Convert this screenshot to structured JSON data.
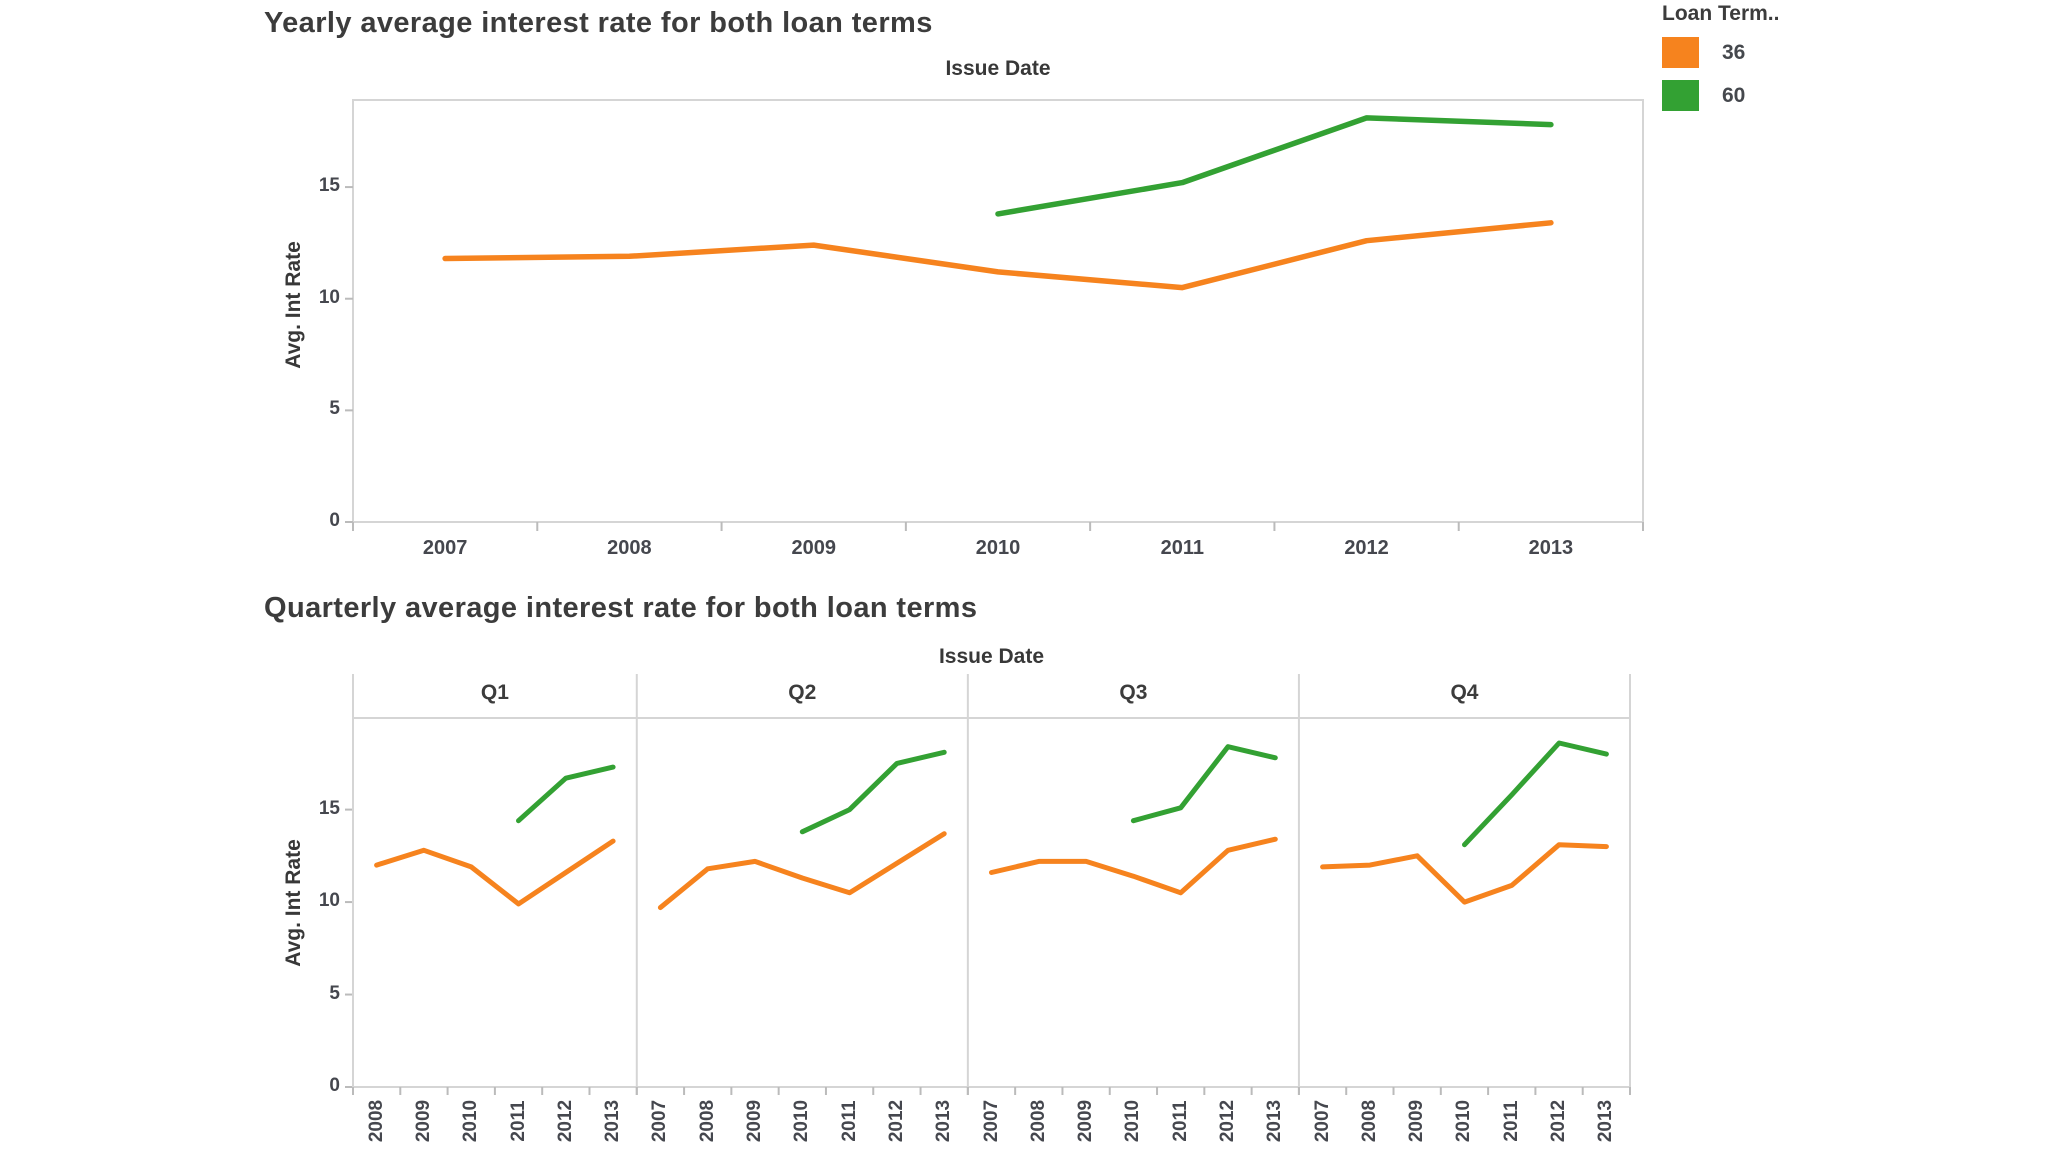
{
  "page": {
    "background": "#ffffff"
  },
  "legend": {
    "title": "Loan Term..",
    "items": [
      {
        "label": "36",
        "color": "#f6831e"
      },
      {
        "label": "60",
        "color": "#33a133"
      }
    ]
  },
  "colors": {
    "series_36": "#f6831e",
    "series_60": "#33a133",
    "plot_border": "#d5d5d5",
    "tick_mark": "#bbbbbb",
    "title_text": "#3c3c3c",
    "axis_text": "#45474e"
  },
  "chart_data": [
    {
      "type": "line",
      "title": "Yearly average interest rate for both loan terms",
      "xlabel": "Issue Date",
      "ylabel": "Avg. Int Rate",
      "x": [
        2007,
        2008,
        2009,
        2010,
        2011,
        2012,
        2013
      ],
      "yticks": [
        0,
        5,
        10,
        15
      ],
      "ylim": [
        0,
        18.9
      ],
      "grid": false,
      "legend_position": "top-right",
      "series": [
        {
          "name": "36",
          "color": "#f6831e",
          "values": [
            11.8,
            11.9,
            12.4,
            11.2,
            10.5,
            12.6,
            13.4
          ]
        },
        {
          "name": "60",
          "color": "#33a133",
          "values": [
            null,
            null,
            null,
            13.8,
            15.2,
            18.1,
            17.8
          ]
        }
      ]
    },
    {
      "type": "line-small-multiples",
      "title": "Quarterly average interest rate for both loan terms",
      "xlabel": "Issue Date",
      "ylabel": "Avg. Int Rate",
      "yticks": [
        0,
        5,
        10,
        15
      ],
      "ylim": [
        0,
        19.9
      ],
      "grid": false,
      "panels": [
        {
          "label": "Q1",
          "x": [
            2008,
            2009,
            2010,
            2011,
            2012,
            2013
          ],
          "series": [
            {
              "name": "36",
              "color": "#f6831e",
              "values": [
                12.0,
                12.8,
                11.9,
                9.9,
                11.6,
                13.3
              ]
            },
            {
              "name": "60",
              "color": "#33a133",
              "values": [
                null,
                null,
                null,
                14.4,
                16.7,
                17.3
              ]
            }
          ]
        },
        {
          "label": "Q2",
          "x": [
            2007,
            2008,
            2009,
            2010,
            2011,
            2012,
            2013
          ],
          "series": [
            {
              "name": "36",
              "color": "#f6831e",
              "values": [
                9.7,
                11.8,
                12.2,
                11.3,
                10.5,
                12.1,
                13.7
              ]
            },
            {
              "name": "60",
              "color": "#33a133",
              "values": [
                null,
                null,
                null,
                13.8,
                15.0,
                17.5,
                18.1
              ]
            }
          ]
        },
        {
          "label": "Q3",
          "x": [
            2007,
            2008,
            2009,
            2010,
            2011,
            2012,
            2013
          ],
          "series": [
            {
              "name": "36",
              "color": "#f6831e",
              "values": [
                11.6,
                12.2,
                12.2,
                11.4,
                10.5,
                12.8,
                13.4
              ]
            },
            {
              "name": "60",
              "color": "#33a133",
              "values": [
                null,
                null,
                null,
                14.4,
                15.1,
                18.4,
                17.8
              ]
            }
          ]
        },
        {
          "label": "Q4",
          "x": [
            2007,
            2008,
            2009,
            2010,
            2011,
            2012,
            2013
          ],
          "series": [
            {
              "name": "36",
              "color": "#f6831e",
              "values": [
                11.9,
                12.0,
                12.5,
                10.0,
                10.9,
                13.1,
                13.0
              ]
            },
            {
              "name": "60",
              "color": "#33a133",
              "values": [
                null,
                null,
                null,
                13.1,
                15.8,
                18.6,
                18.0
              ]
            }
          ]
        }
      ]
    }
  ]
}
